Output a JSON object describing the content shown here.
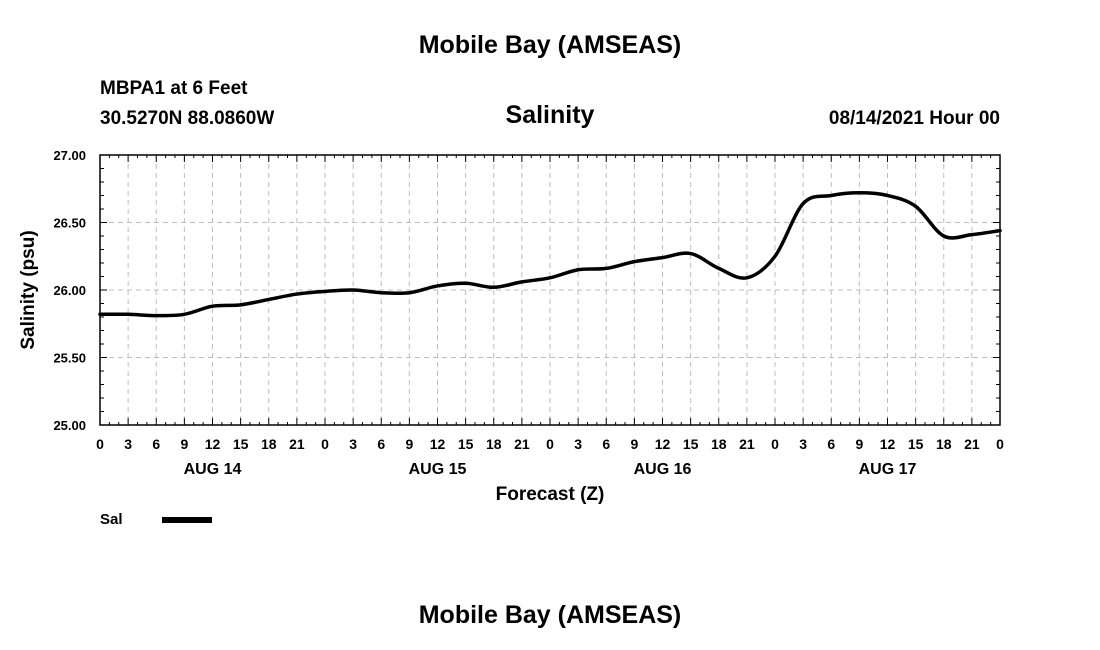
{
  "header": {
    "title_top": "Mobile Bay (AMSEAS)",
    "title_bottom": "Mobile Bay (AMSEAS)",
    "station": "MBPA1 at 6 Feet",
    "coords": "30.5270N  88.0860W",
    "variable": "Salinity",
    "datetime": "08/14/2021 Hour 00"
  },
  "legend": {
    "position": "bottom-left",
    "label": "Sal",
    "color": "#000000"
  },
  "chart_data": {
    "type": "line",
    "title": "Salinity",
    "xlabel": "Forecast (Z)",
    "ylabel": "Salinity (psu)",
    "xlim": [
      0,
      96
    ],
    "ylim": [
      25.0,
      27.0
    ],
    "grid": true,
    "x_ticks": [
      0,
      3,
      6,
      9,
      12,
      15,
      18,
      21,
      24,
      27,
      30,
      33,
      36,
      39,
      42,
      45,
      48,
      51,
      54,
      57,
      60,
      63,
      66,
      69,
      72,
      75,
      78,
      81,
      84,
      87,
      90,
      93,
      96
    ],
    "x_tick_labels": [
      "0",
      "3",
      "6",
      "9",
      "12",
      "15",
      "18",
      "21",
      "0",
      "3",
      "6",
      "9",
      "12",
      "15",
      "18",
      "21",
      "0",
      "3",
      "6",
      "9",
      "12",
      "15",
      "18",
      "21",
      "0",
      "3",
      "6",
      "9",
      "12",
      "15",
      "18",
      "21",
      "0"
    ],
    "day_labels": [
      {
        "x": 12,
        "label": "AUG 14"
      },
      {
        "x": 36,
        "label": "AUG 15"
      },
      {
        "x": 60,
        "label": "AUG 16"
      },
      {
        "x": 84,
        "label": "AUG 17"
      }
    ],
    "y_ticks": [
      25.0,
      25.5,
      26.0,
      26.5,
      27.0
    ],
    "y_tick_labels": [
      "25.00",
      "25.50",
      "26.00",
      "26.50",
      "27.00"
    ],
    "series": [
      {
        "name": "Sal",
        "color": "#000000",
        "x": [
          0,
          3,
          6,
          9,
          12,
          15,
          18,
          21,
          24,
          27,
          30,
          33,
          36,
          39,
          42,
          45,
          48,
          51,
          54,
          57,
          60,
          63,
          66,
          69,
          72,
          75,
          78,
          81,
          84,
          87,
          90,
          93,
          96
        ],
        "values": [
          25.82,
          25.82,
          25.81,
          25.82,
          25.88,
          25.89,
          25.93,
          25.97,
          25.99,
          26.0,
          25.98,
          25.98,
          26.03,
          26.05,
          26.02,
          26.06,
          26.09,
          26.15,
          26.16,
          26.21,
          26.24,
          26.27,
          26.16,
          26.09,
          26.25,
          26.64,
          26.7,
          26.72,
          26.7,
          26.62,
          26.4,
          26.41,
          26.44
        ]
      }
    ]
  }
}
